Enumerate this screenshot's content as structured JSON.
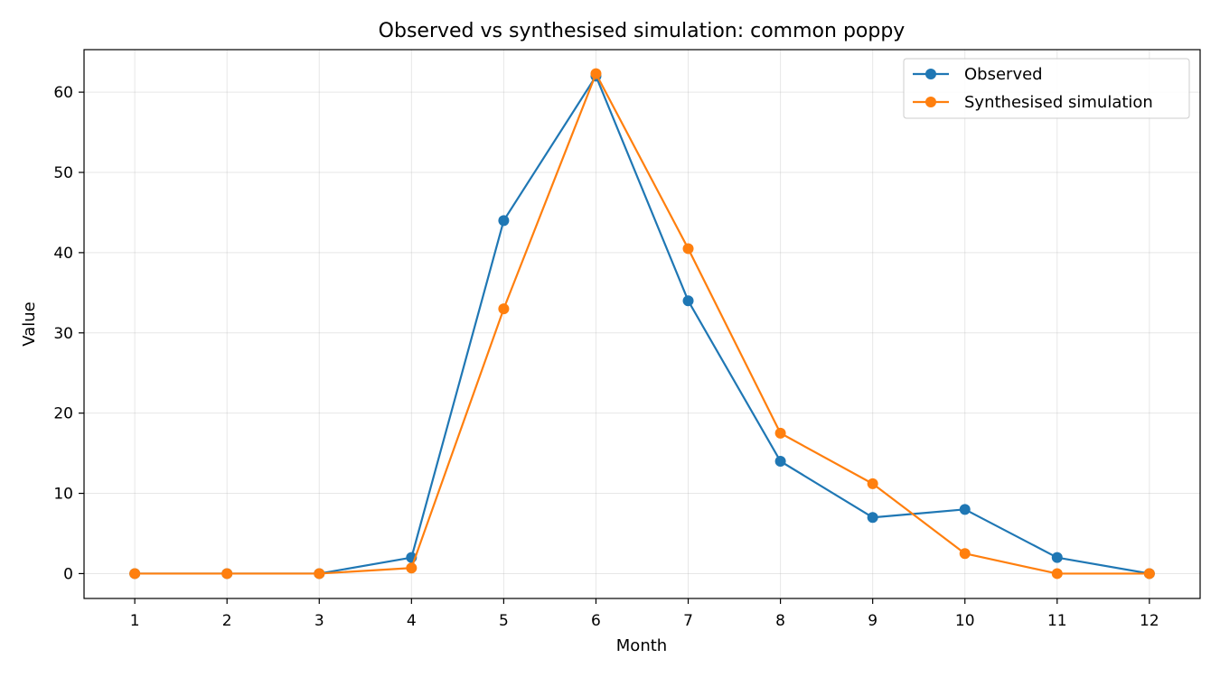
{
  "chart_data": {
    "type": "line",
    "title": "Observed vs synthesised simulation: common poppy",
    "xlabel": "Month",
    "ylabel": "Value",
    "x": [
      1,
      2,
      3,
      4,
      5,
      6,
      7,
      8,
      9,
      10,
      11,
      12
    ],
    "xlim": [
      0.45,
      12.55
    ],
    "ylim": [
      -3.1,
      65.3
    ],
    "yticks": [
      0,
      10,
      20,
      30,
      40,
      50,
      60
    ],
    "grid": true,
    "legend_position": "top-right",
    "series": [
      {
        "name": "Observed",
        "color": "#1f77b4",
        "values": [
          0,
          0,
          0,
          2,
          44,
          62,
          34,
          14,
          7,
          8,
          2,
          0
        ]
      },
      {
        "name": "Synthesised simulation",
        "color": "#ff7f0e",
        "values": [
          0,
          0,
          0,
          0.7,
          33,
          62.3,
          40.5,
          17.5,
          11.2,
          2.5,
          0,
          0
        ]
      }
    ]
  }
}
